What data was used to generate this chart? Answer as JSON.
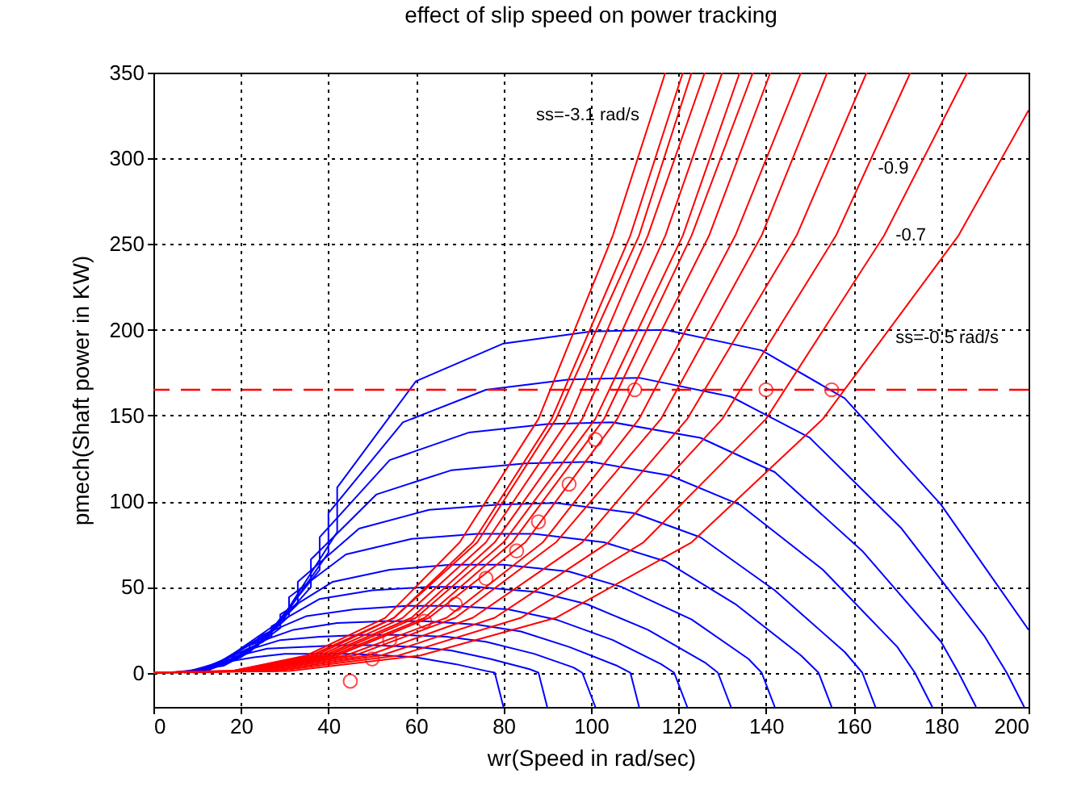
{
  "chart_data": {
    "type": "line",
    "title": "effect of slip speed on power tracking",
    "xlabel": "wr(Speed in rad/sec)",
    "ylabel": "pmech(Shaft power in KW)",
    "xlim": [
      0,
      200
    ],
    "xticks": [
      0,
      20,
      40,
      60,
      80,
      100,
      120,
      140,
      160,
      180,
      200
    ],
    "ylim": [
      -20,
      350
    ],
    "yticks": [
      0,
      50,
      100,
      150,
      200,
      250,
      300,
      350
    ],
    "grid": true,
    "series": [
      {
        "color": "#0000ff",
        "x": [
          12,
          29,
          42,
          42,
          60,
          80,
          100,
          117,
          139,
          158,
          180,
          200
        ],
        "values": [
          0,
          30,
          82,
          108,
          170,
          192,
          199,
          200,
          188,
          160,
          98,
          25
        ]
      },
      {
        "color": "#0000ff",
        "x": [
          11,
          28,
          40,
          40,
          57,
          76,
          95,
          111,
          132,
          150,
          171,
          190,
          195,
          199
        ],
        "values": [
          0,
          26,
          70,
          93,
          146,
          165,
          171,
          172,
          161,
          137,
          84,
          21,
          0,
          -20
        ]
      },
      {
        "color": "#0000ff",
        "x": [
          11,
          26,
          38,
          38,
          54,
          72,
          90,
          105,
          125,
          142,
          162,
          180,
          184,
          188
        ],
        "values": [
          0,
          22,
          60,
          79,
          124,
          140,
          145,
          146,
          137,
          117,
          71,
          18,
          0,
          -20
        ]
      },
      {
        "color": "#0000ff",
        "x": [
          10,
          25,
          36,
          36,
          51,
          68,
          85,
          100,
          118,
          134,
          153,
          170,
          174,
          178
        ],
        "values": [
          0,
          18,
          50,
          66,
          104,
          118,
          122,
          123,
          115,
          98,
          60,
          15,
          0,
          -20
        ]
      },
      {
        "color": "#0000ff",
        "x": [
          9,
          23,
          33,
          33,
          47,
          63,
          79,
          92,
          110,
          125,
          142,
          158,
          162,
          165
        ],
        "values": [
          0,
          15,
          40,
          53,
          84,
          95,
          98,
          99,
          93,
          79,
          48,
          12,
          0,
          -20
        ]
      },
      {
        "color": "#0000ff",
        "x": [
          9,
          22,
          31,
          31,
          44,
          59,
          74,
          87,
          103,
          117,
          133,
          148,
          152,
          155
        ],
        "values": [
          0,
          12,
          33,
          44,
          69,
          78,
          81,
          81,
          76,
          65,
          40,
          10,
          0,
          -20
        ]
      },
      {
        "color": "#0000ff",
        "x": [
          8,
          20,
          29,
          29,
          41,
          54,
          68,
          80,
          95,
          107,
          123,
          136,
          139,
          142
        ],
        "values": [
          0,
          9,
          26,
          34,
          53,
          60,
          63,
          63,
          59,
          50,
          31,
          8,
          0,
          -20
        ]
      },
      {
        "color": "#0000ff",
        "x": [
          7,
          18,
          27,
          27,
          38,
          50,
          63,
          74,
          88,
          99,
          113,
          126,
          129,
          132
        ],
        "values": [
          0,
          8,
          21,
          27,
          43,
          48,
          50,
          50,
          47,
          40,
          25,
          6,
          0,
          -20
        ]
      },
      {
        "color": "#0000ff",
        "x": [
          7,
          17,
          24,
          24,
          35,
          46,
          58,
          68,
          81,
          92,
          105,
          116,
          119,
          122
        ],
        "values": [
          0,
          6,
          16,
          21,
          33,
          37,
          39,
          39,
          37,
          31,
          19,
          5,
          0,
          -20
        ]
      },
      {
        "color": "#0000ff",
        "x": [
          6,
          16,
          22,
          22,
          32,
          42,
          53,
          62,
          74,
          84,
          95,
          106,
          109,
          111
        ],
        "values": [
          0,
          4,
          12,
          16,
          25,
          29,
          30,
          30,
          28,
          24,
          15,
          4,
          0,
          -20
        ]
      },
      {
        "color": "#0000ff",
        "x": [
          6,
          14,
          20,
          20,
          29,
          38,
          48,
          56,
          67,
          76,
          87,
          96,
          98,
          101
        ],
        "values": [
          0,
          3,
          9,
          12,
          19,
          21,
          22,
          22,
          21,
          18,
          11,
          3,
          0,
          -20
        ]
      },
      {
        "color": "#0000ff",
        "x": [
          5,
          13,
          18,
          18,
          26,
          34,
          43,
          50,
          60,
          68,
          77,
          86,
          88,
          90
        ],
        "values": [
          0,
          2,
          7,
          9,
          14,
          15,
          16,
          16,
          15,
          13,
          8,
          2,
          0,
          -20
        ]
      },
      {
        "color": "#0000ff",
        "x": [
          4,
          11,
          16,
          16,
          23,
          30,
          38,
          45,
          53,
          60,
          69,
          76,
          78,
          80
        ],
        "values": [
          0,
          2,
          5,
          6,
          9,
          11,
          11,
          11,
          10,
          9,
          5,
          1,
          0,
          -20
        ]
      },
      {
        "color": "#ff0000",
        "x": [
          0,
          31,
          61,
          92,
          123,
          153,
          184,
          200
        ],
        "values": [
          0,
          1,
          10,
          32,
          76,
          148,
          255,
          328
        ]
      },
      {
        "color": "#ff0000",
        "x": [
          0,
          28,
          56,
          84,
          112,
          140,
          167,
          186
        ],
        "values": [
          0,
          1,
          10,
          32,
          76,
          148,
          255,
          350
        ]
      },
      {
        "color": "#ff0000",
        "x": [
          0,
          26,
          52,
          78,
          104,
          130,
          156,
          173
        ],
        "values": [
          0,
          1,
          10,
          32,
          76,
          148,
          255,
          350
        ]
      },
      {
        "color": "#ff0000",
        "x": [
          0,
          24,
          49,
          73,
          98,
          122,
          147,
          163
        ],
        "values": [
          0,
          1,
          10,
          32,
          76,
          148,
          255,
          350
        ]
      },
      {
        "color": "#ff0000",
        "x": [
          0,
          23,
          46,
          69,
          92,
          116,
          139,
          154
        ],
        "values": [
          0,
          1,
          10,
          32,
          76,
          148,
          255,
          350
        ]
      },
      {
        "color": "#ff0000",
        "x": [
          0,
          22,
          44,
          67,
          89,
          111,
          133,
          148
        ],
        "values": [
          0,
          1,
          10,
          32,
          76,
          148,
          255,
          350
        ]
      },
      {
        "color": "#ff0000",
        "x": [
          0,
          21,
          42,
          63,
          85,
          106,
          127,
          141
        ],
        "values": [
          0,
          1,
          10,
          32,
          76,
          148,
          255,
          350
        ]
      },
      {
        "color": "#ff0000",
        "x": [
          0,
          21,
          41,
          62,
          82,
          103,
          123,
          137
        ],
        "values": [
          0,
          1,
          10,
          32,
          76,
          148,
          255,
          350
        ]
      },
      {
        "color": "#ff0000",
        "x": [
          0,
          20,
          40,
          60,
          80,
          101,
          121,
          134
        ],
        "values": [
          0,
          1,
          10,
          32,
          76,
          148,
          255,
          350
        ]
      },
      {
        "color": "#ff0000",
        "x": [
          0,
          20,
          39,
          59,
          78,
          98,
          117,
          130
        ],
        "values": [
          0,
          1,
          10,
          32,
          76,
          148,
          255,
          350
        ]
      },
      {
        "color": "#ff0000",
        "x": [
          0,
          19,
          38,
          57,
          76,
          95,
          113,
          126
        ],
        "values": [
          0,
          1,
          10,
          32,
          76,
          148,
          255,
          350
        ]
      },
      {
        "color": "#ff0000",
        "x": [
          0,
          18,
          37,
          55,
          74,
          92,
          111,
          123
        ],
        "values": [
          0,
          1,
          10,
          32,
          76,
          148,
          255,
          350
        ]
      },
      {
        "color": "#ff0000",
        "x": [
          0,
          18,
          36,
          55,
          73,
          91,
          109,
          121
        ],
        "values": [
          0,
          1,
          10,
          32,
          76,
          148,
          255,
          350
        ]
      },
      {
        "color": "#ff0000",
        "x": [
          0,
          18,
          35,
          53,
          70,
          88,
          105,
          117
        ],
        "values": [
          0,
          1,
          10,
          32,
          76,
          148,
          255,
          350
        ]
      },
      {
        "type": "scatter",
        "marker": "circle",
        "color": "#ff0000",
        "x": [
          45,
          50,
          54,
          62,
          69,
          76,
          83,
          88,
          95,
          101,
          110,
          140,
          155
        ],
        "values": [
          -5,
          8,
          19,
          30,
          40,
          55,
          71,
          88,
          110,
          136,
          165,
          165,
          165
        ]
      }
    ],
    "ref_lines": [
      {
        "axis": "y",
        "value": 165,
        "color": "#ff0000",
        "line_style": "dashed"
      }
    ],
    "annotations": [
      {
        "text": "ss=-3.1 rad/s",
        "x": 114,
        "y": 325
      },
      {
        "text": "-0.9",
        "x": 163,
        "y": 294
      },
      {
        "text": "-0.7",
        "x": 167,
        "y": 255
      },
      {
        "text": "ss=-0.5 rad/s",
        "x": 167,
        "y": 195
      }
    ]
  }
}
